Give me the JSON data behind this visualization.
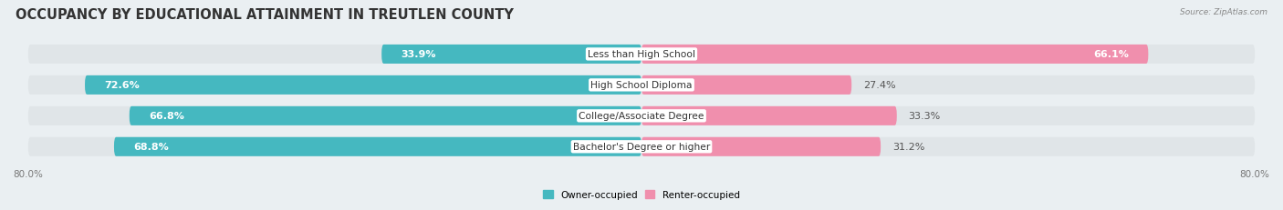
{
  "title": "OCCUPANCY BY EDUCATIONAL ATTAINMENT IN TREUTLEN COUNTY",
  "source": "Source: ZipAtlas.com",
  "categories": [
    "Less than High School",
    "High School Diploma",
    "College/Associate Degree",
    "Bachelor's Degree or higher"
  ],
  "owner_values": [
    33.9,
    72.6,
    66.8,
    68.8
  ],
  "renter_values": [
    66.1,
    27.4,
    33.3,
    31.2
  ],
  "owner_color": "#45B8C0",
  "renter_color": "#F08FAD",
  "background_color": "#EAEFF2",
  "bar_background": "#E0E5E8",
  "x_axis_left_label": "80.0%",
  "x_axis_right_label": "80.0%",
  "legend_owner": "Owner-occupied",
  "legend_renter": "Renter-occupied",
  "title_fontsize": 10.5,
  "bar_height": 0.62,
  "label_fontsize": 8.0
}
